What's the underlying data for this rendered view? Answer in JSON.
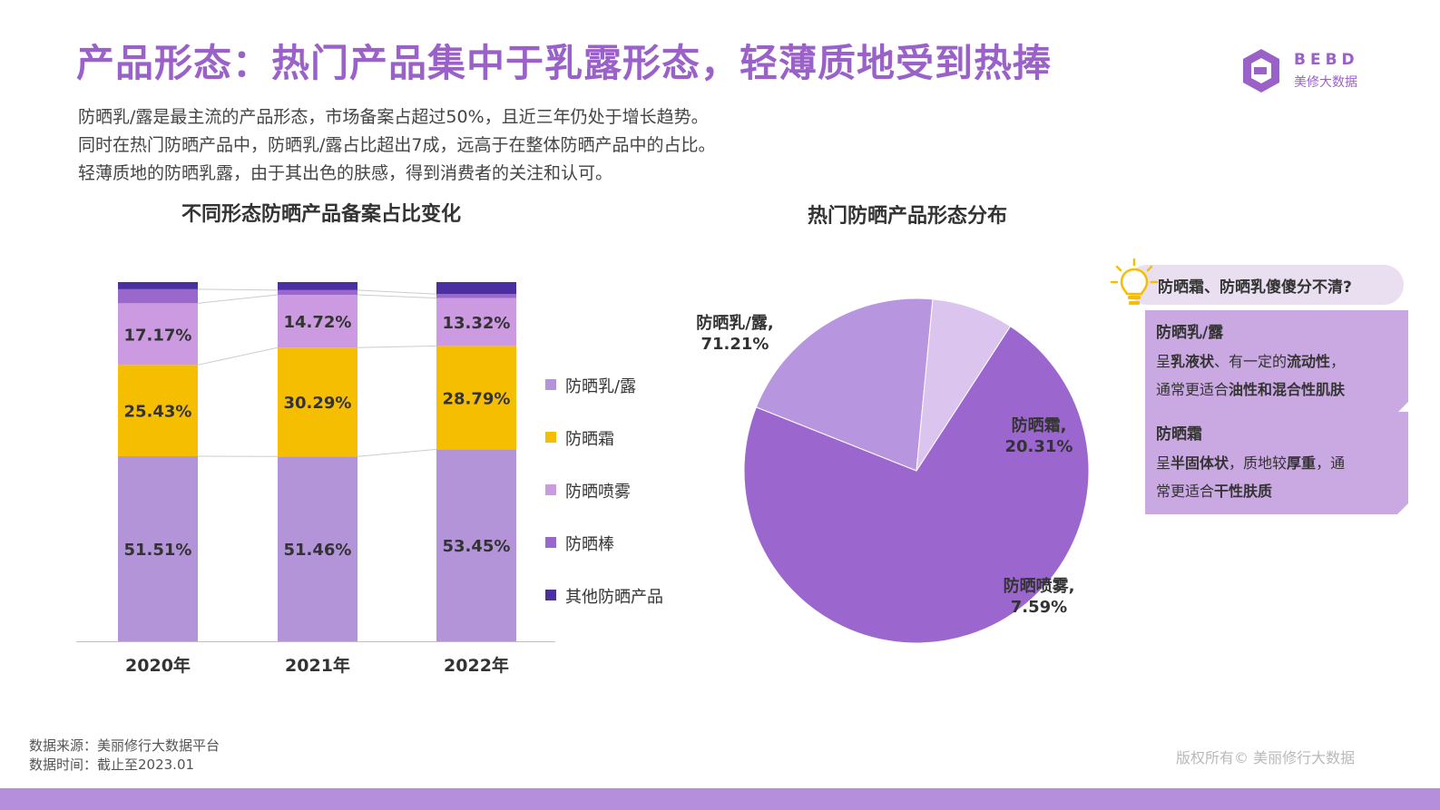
{
  "header": {
    "title": "产品形态：热门产品集中于乳露形态，轻薄质地受到热捧",
    "description": [
      "防晒乳/露是最主流的产品形态，市场备案占超过50%，且近三年仍处于增长趋势。",
      "同时在热门防晒产品中，防晒乳/露占比超出7成，远高于在整体防晒产品中的占比。",
      "轻薄质地的防晒乳露，由于其出色的肤感，得到消费者的关注和认可。"
    ]
  },
  "logo": {
    "en": "BEBD",
    "cn": "美修大数据"
  },
  "colors": {
    "lotion": "#b394d9",
    "cream": "#f5be00",
    "spray": "#cc9ae0",
    "stick": "#9a68cd",
    "other": "#4b2fa0",
    "title": "#9a62c9",
    "pie_main": "#9b67cf",
    "pie_cream": "#b896df",
    "pie_spray": "#dbc5ef"
  },
  "chart_data": [
    {
      "type": "bar",
      "stacked": true,
      "normalized": true,
      "title": "不同形态防晒产品备案占比变化",
      "categories": [
        "2020年",
        "2021年",
        "2022年"
      ],
      "series": [
        {
          "name": "防晒乳/露",
          "values": [
            51.51,
            51.46,
            53.45
          ],
          "labels": [
            "51.51%",
            "51.46%",
            "53.45%"
          ],
          "color": "#b394d9"
        },
        {
          "name": "防晒霜",
          "values": [
            25.43,
            30.29,
            28.79
          ],
          "labels": [
            "25.43%",
            "30.29%",
            "28.79%"
          ],
          "color": "#f5be00"
        },
        {
          "name": "防晒喷雾",
          "values": [
            17.17,
            14.72,
            13.32
          ],
          "labels": [
            "17.17%",
            "14.72%",
            "13.32%"
          ],
          "color": "#cc9ae0"
        },
        {
          "name": "防晒棒",
          "values": [
            3.9,
            1.3,
            1.1
          ],
          "labels": [
            "",
            "",
            ""
          ],
          "color": "#9a68cd"
        },
        {
          "name": "其他防晒产品",
          "values": [
            1.99,
            2.23,
            3.34
          ],
          "labels": [
            "",
            "",
            ""
          ],
          "color": "#4b2fa0"
        }
      ],
      "ylim": [
        0,
        100
      ],
      "legend_position": "right",
      "grid": false
    },
    {
      "type": "pie",
      "title": "热门防晒产品形态分布",
      "slices": [
        {
          "name": "防晒乳/露",
          "value": 71.21,
          "label_name": "防晒乳/露,",
          "label_value": "71.21%",
          "color": "#9b67cf"
        },
        {
          "name": "防晒霜",
          "value": 20.31,
          "label_name": "防晒霜,",
          "label_value": "20.31%",
          "color": "#b896df"
        },
        {
          "name": "防晒喷雾",
          "value": 7.59,
          "label_name": "防晒喷雾,",
          "label_value": "7.59%",
          "color": "#dbc5ef"
        }
      ]
    }
  ],
  "tip": {
    "question": "防晒霜、防晒乳傻傻分不清?",
    "lotion": {
      "title": "防晒乳/露",
      "line1_a": "呈",
      "line1_b": "乳液状",
      "line1_c": "、有一定的",
      "line1_d": "流动性",
      "line1_e": "，",
      "line2_a": "通常更适合",
      "line2_b": "油性和混合性肌肤"
    },
    "cream": {
      "title": "防晒霜",
      "line1_a": "呈",
      "line1_b": "半固体状",
      "line1_c": "，质地较",
      "line1_d": "厚重",
      "line1_e": "，通",
      "line2_a": "常更适合",
      "line2_b": "干性肤质"
    }
  },
  "footer": {
    "source": "数据来源：美丽修行大数据平台",
    "time": "数据时间：截止至2023.01",
    "copyright": "版权所有© 美丽修行大数据"
  }
}
